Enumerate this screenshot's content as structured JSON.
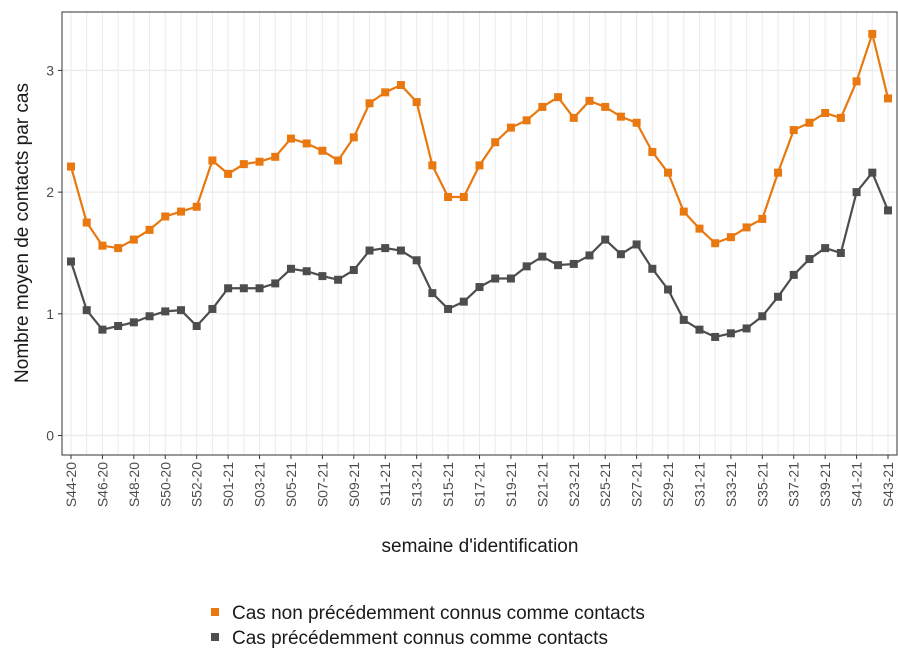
{
  "chart_data": {
    "type": "line",
    "y_label": "Nombre moyen de contacts par cas",
    "x_label": "semaine d'identification",
    "categories": [
      "S44-20",
      null,
      "S46-20",
      null,
      "S48-20",
      null,
      "S50-20",
      null,
      "S52-20",
      null,
      "S01-21",
      null,
      "S03-21",
      null,
      "S05-21",
      null,
      "S07-21",
      null,
      "S09-21",
      null,
      "S11-21",
      null,
      "S13-21",
      null,
      "S15-21",
      null,
      "S17-21",
      null,
      "S19-21",
      null,
      "S21-21",
      null,
      "S23-21",
      null,
      "S25-21",
      null,
      "S27-21",
      null,
      "S29-21",
      null,
      "S31-21",
      null,
      "S33-21",
      null,
      "S35-21",
      null,
      "S37-21",
      null,
      "S39-21",
      null,
      "S41-21",
      null,
      "S43-21"
    ],
    "series": [
      {
        "name": "Cas non précédemment connus comme contacts",
        "color": "#e8780f",
        "values": [
          2.21,
          1.75,
          1.56,
          1.54,
          1.61,
          1.69,
          1.8,
          1.84,
          1.88,
          2.26,
          2.15,
          2.23,
          2.25,
          2.29,
          2.44,
          2.4,
          2.34,
          2.26,
          2.45,
          2.73,
          2.82,
          2.88,
          2.74,
          2.22,
          1.96,
          1.96,
          2.22,
          2.41,
          2.53,
          2.59,
          2.7,
          2.78,
          2.61,
          2.75,
          2.7,
          2.62,
          2.57,
          2.33,
          2.16,
          1.84,
          1.7,
          1.58,
          1.63,
          1.71,
          1.78,
          2.16,
          2.51,
          2.57,
          2.65,
          2.61,
          2.91,
          3.3,
          2.77
        ]
      },
      {
        "name": "Cas précédemment connus comme contacts",
        "color": "#4d4d4d",
        "values": [
          1.43,
          1.03,
          0.87,
          0.9,
          0.93,
          0.98,
          1.02,
          1.03,
          0.9,
          1.04,
          1.21,
          1.21,
          1.21,
          1.25,
          1.37,
          1.35,
          1.31,
          1.28,
          1.36,
          1.52,
          1.54,
          1.52,
          1.44,
          1.17,
          1.04,
          1.1,
          1.22,
          1.29,
          1.29,
          1.39,
          1.47,
          1.4,
          1.41,
          1.48,
          1.61,
          1.49,
          1.57,
          1.37,
          1.2,
          0.95,
          0.87,
          0.81,
          0.84,
          0.88,
          0.98,
          1.14,
          1.32,
          1.45,
          1.54,
          1.5,
          2.0,
          2.16,
          1.85
        ]
      }
    ],
    "ylim": [
      -0.16,
      3.48
    ],
    "yticks": [
      0,
      1,
      2,
      3
    ],
    "grid": true,
    "legend": "bottom"
  }
}
